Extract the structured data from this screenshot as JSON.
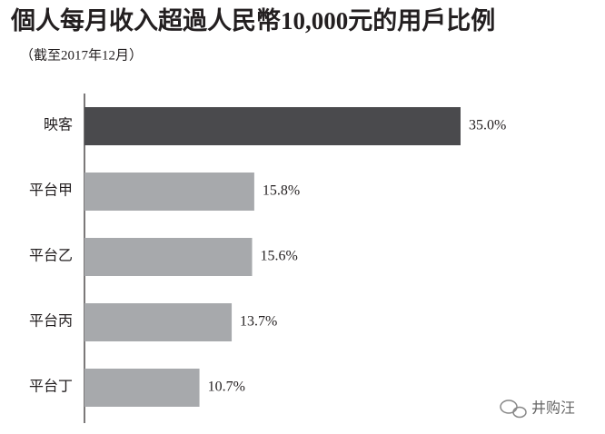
{
  "chart_data": {
    "type": "bar",
    "orientation": "horizontal",
    "title": "個人每月收入超過人民幣10,000元的用戶比例",
    "subtitle": "（截至2017年12月）",
    "categories": [
      "映客",
      "平台甲",
      "平台乙",
      "平台丙",
      "平台丁"
    ],
    "values": [
      35.0,
      15.8,
      15.6,
      13.7,
      10.7
    ],
    "value_labels": [
      "35.0%",
      "15.8%",
      "15.6%",
      "13.7%",
      "10.7%"
    ],
    "colors": [
      "#4a4a4d",
      "#a7a9ac",
      "#a7a9ac",
      "#a7a9ac",
      "#a7a9ac"
    ]
  },
  "watermark": "井购汪"
}
